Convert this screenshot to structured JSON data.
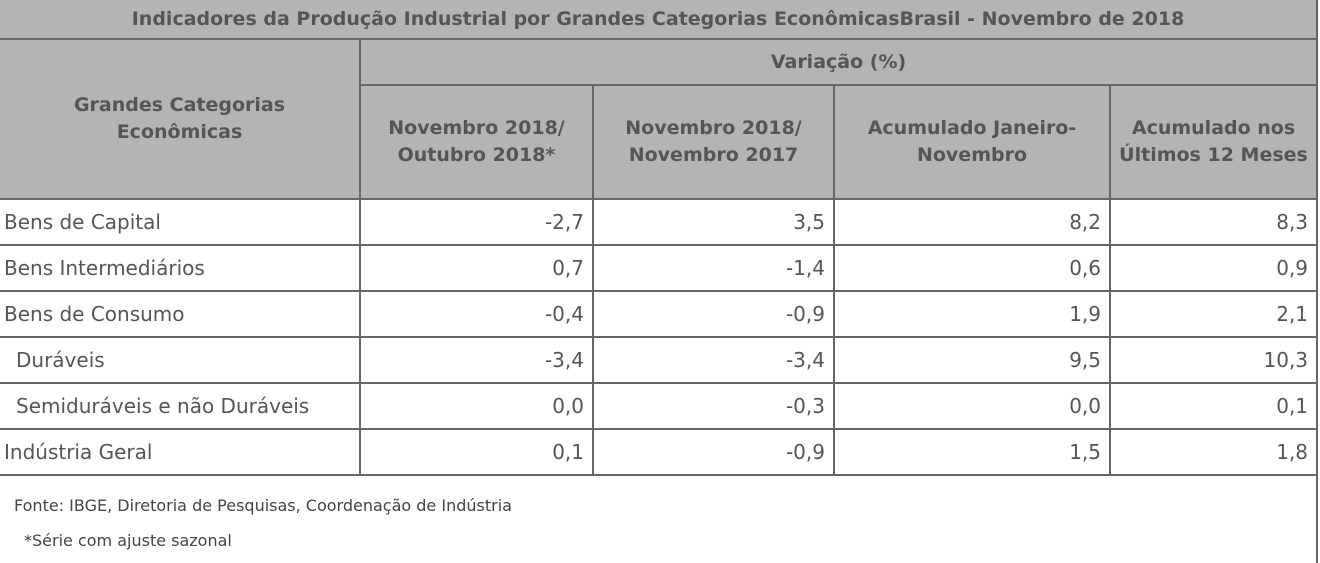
{
  "title": "Indicadores da Produção Industrial por Grandes Categorias EconômicasBrasil - Novembro de 2018",
  "header": {
    "category": "Grandes Categorias Econômicas",
    "group": "Variação (%)",
    "columns": [
      "Novembro 2018/ Outubro 2018*",
      "Novembro 2018/ Novembro 2017",
      "Acumulado Janeiro-Novembro",
      "Acumulado nos Últimos 12 Meses"
    ]
  },
  "rows": [
    {
      "label": "Bens de Capital",
      "values": [
        "-2,7",
        "3,5",
        "8,2",
        "8,3"
      ]
    },
    {
      "label": "Bens Intermediários",
      "values": [
        "0,7",
        "-1,4",
        "0,6",
        "0,9"
      ]
    },
    {
      "label": "Bens de Consumo",
      "values": [
        "-0,4",
        "-0,9",
        "1,9",
        "2,1"
      ]
    },
    {
      "label": "Duráveis",
      "values": [
        "-3,4",
        "-3,4",
        "9,5",
        "10,3"
      ]
    },
    {
      "label": "Semiduráveis e não Duráveis",
      "values": [
        "0,0",
        "-0,3",
        "0,0",
        "0,1"
      ]
    },
    {
      "label": "Indústria Geral",
      "values": [
        "0,1",
        "-0,9",
        "1,5",
        "1,8"
      ]
    }
  ],
  "footer": {
    "source": "Fonte: IBGE, Diretoria de Pesquisas, Coordenação de Indústria",
    "note": "*Série com ajuste sazonal"
  }
}
